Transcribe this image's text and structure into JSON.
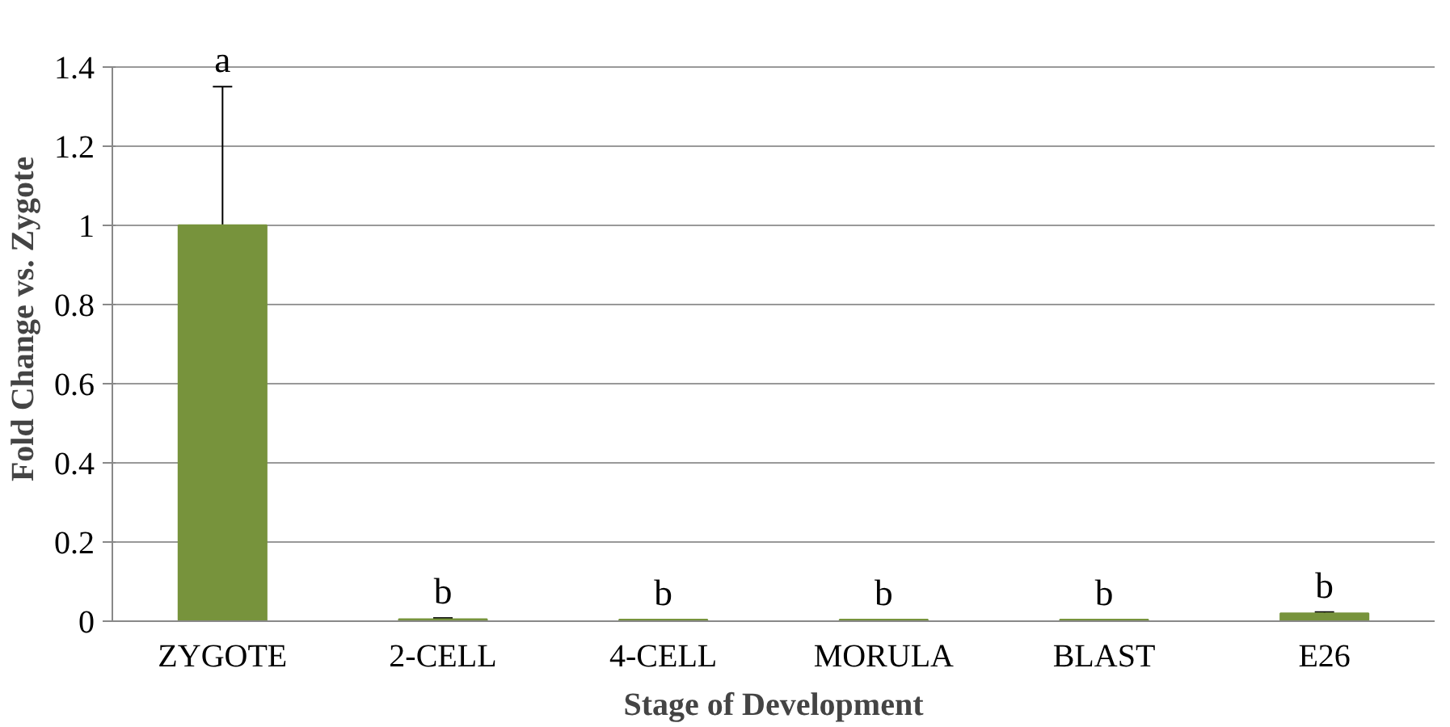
{
  "chart_data": {
    "type": "bar",
    "xlabel": "Stage of Development",
    "ylabel": "Fold Change vs. Zygote",
    "categories": [
      "ZYGOTE",
      "2-CELL",
      "4-CELL",
      "MORULA",
      "BLAST",
      "E26"
    ],
    "values": [
      1,
      0.005,
      0.004,
      0.004,
      0.004,
      0.02
    ],
    "errors": [
      0.35,
      0.003,
      null,
      null,
      null,
      0.003
    ],
    "color": "#77933c",
    "ylim": [
      0,
      1.4
    ],
    "yticks": [
      0,
      0.2,
      0.4,
      0.6,
      0.8,
      1,
      1.2,
      1.4
    ],
    "grid": "y",
    "annotations": [
      "a",
      "b",
      "b",
      "b",
      "b",
      "b"
    ]
  }
}
